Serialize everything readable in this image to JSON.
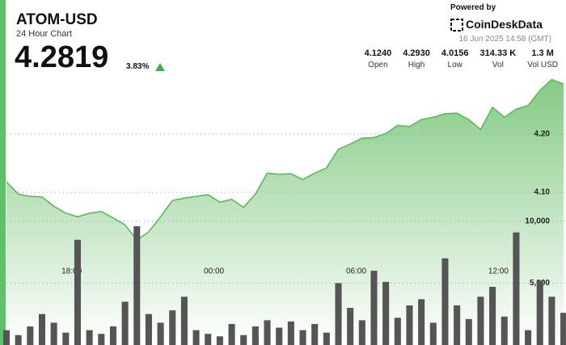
{
  "header": {
    "symbol": "ATOM-USD",
    "subtitle": "24 Hour Chart",
    "price": "4.2819",
    "change": "3.83%",
    "powered_by": "Powered by",
    "brand": "CoinDeskData",
    "timestamp": "16 Jun 2025 14:58 (GMT)"
  },
  "stats": [
    {
      "value": "4.1240",
      "label": "Open"
    },
    {
      "value": "4.2930",
      "label": "High"
    },
    {
      "value": "4.0156",
      "label": "Low"
    },
    {
      "value": "314.33 K",
      "label": "Vol"
    },
    {
      "value": "1.3 M",
      "label": "Vol USD"
    }
  ],
  "chart_data": [
    {
      "type": "area",
      "color": "#5cb85c",
      "x": [
        15.25,
        15.75,
        16.25,
        16.75,
        17.25,
        17.75,
        18.25,
        18.75,
        19.25,
        19.75,
        20.25,
        20.75,
        21.25,
        21.75,
        22.25,
        22.75,
        23.25,
        23.75,
        24.25,
        24.75,
        25.25,
        25.75,
        26.25,
        26.75,
        27.25,
        27.75,
        28.25,
        28.75,
        29.25,
        29.75,
        30.25,
        30.75,
        31.25,
        31.75,
        32.25,
        32.75,
        33.25,
        33.75,
        34.25,
        34.75,
        35.25,
        35.75,
        36.25,
        36.75,
        37.25,
        37.75,
        38.25,
        38.75
      ],
      "values": [
        4.118,
        4.097,
        4.093,
        4.092,
        4.076,
        4.064,
        4.058,
        4.064,
        4.067,
        4.056,
        4.044,
        4.018,
        4.032,
        4.058,
        4.086,
        4.09,
        4.093,
        4.096,
        4.083,
        4.088,
        4.074,
        4.097,
        4.133,
        4.131,
        4.132,
        4.122,
        4.133,
        4.142,
        4.174,
        4.183,
        4.193,
        4.194,
        4.201,
        4.215,
        4.213,
        4.225,
        4.229,
        4.235,
        4.236,
        4.225,
        4.208,
        4.246,
        4.229,
        4.243,
        4.249,
        4.275,
        4.294,
        4.286
      ],
      "xlim": [
        15.25,
        38.85
      ],
      "ylim": [
        3.8375,
        4.3056
      ],
      "xticks": [
        {
          "value": 18,
          "label": "18:00"
        },
        {
          "value": 24,
          "label": "00:00"
        },
        {
          "value": 30,
          "label": "06:00"
        },
        {
          "value": 36,
          "label": "12:00"
        }
      ],
      "yticks": [
        {
          "value": 4.1,
          "label": "4.10"
        },
        {
          "value": 4.2,
          "label": "4.20"
        }
      ],
      "grid": true
    },
    {
      "type": "bar",
      "color": "#555555",
      "x": [
        15.25,
        15.75,
        16.25,
        16.75,
        17.25,
        17.75,
        18.25,
        18.75,
        19.25,
        19.75,
        20.25,
        20.75,
        21.25,
        21.75,
        22.25,
        22.75,
        23.25,
        23.75,
        24.25,
        24.75,
        25.25,
        25.75,
        26.25,
        26.75,
        27.25,
        27.75,
        28.25,
        28.75,
        29.25,
        29.75,
        30.25,
        30.75,
        31.25,
        31.75,
        32.25,
        32.75,
        33.25,
        33.75,
        34.25,
        34.75,
        35.25,
        35.75,
        36.25,
        36.75,
        37.25,
        37.75,
        38.25,
        38.75
      ],
      "values": [
        1200,
        800,
        1500,
        2500,
        1800,
        1000,
        8500,
        1200,
        900,
        1500,
        3500,
        9600,
        2500,
        1800,
        2800,
        3900,
        1200,
        900,
        700,
        1700,
        800,
        1500,
        2000,
        1400,
        1900,
        1200,
        1700,
        1000,
        5000,
        3000,
        2000,
        6000,
        5100,
        2200,
        3200,
        3700,
        1800,
        7000,
        3200,
        2100,
        3900,
        4700,
        2300,
        9100,
        1200,
        5200,
        3900,
        2600
      ],
      "xlim": [
        15.25,
        38.85
      ],
      "ylim": [
        0,
        22000
      ],
      "yticks": [
        {
          "value": 5000,
          "label": "5,000"
        },
        {
          "value": 10000,
          "label": "10,000"
        }
      ],
      "grid": true
    }
  ]
}
